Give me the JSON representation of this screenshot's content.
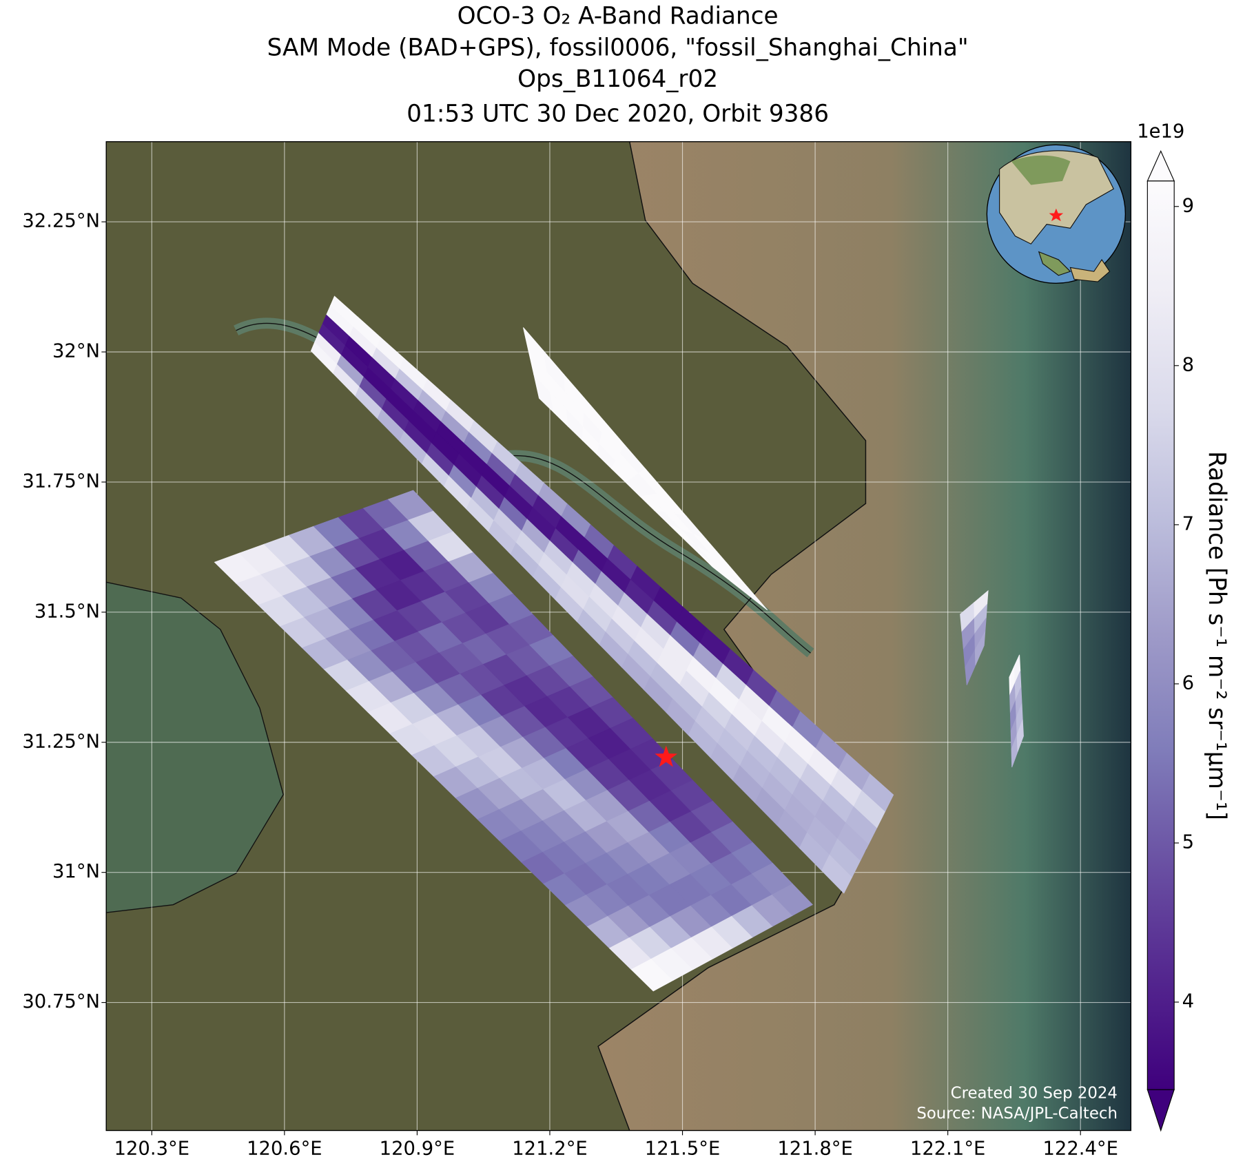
{
  "chart_data": {
    "type": "swath-map",
    "title": [
      "OCO-3 O₂ A-Band Radiance",
      "SAM Mode (BAD+GPS), fossil0006, \"fossil_Shanghai_China\"",
      "Ops_B11064_r02",
      "01:53 UTC 30 Dec 2020, Orbit 9386"
    ],
    "xlim": [
      120.197,
      122.514
    ],
    "ylim": [
      30.504,
      32.404
    ],
    "xticks": [
      {
        "value": 120.3,
        "label": "120.3°E"
      },
      {
        "value": 120.6,
        "label": "120.6°E"
      },
      {
        "value": 120.9,
        "label": "120.9°E"
      },
      {
        "value": 121.2,
        "label": "121.2°E"
      },
      {
        "value": 121.5,
        "label": "121.5°E"
      },
      {
        "value": 121.8,
        "label": "121.8°E"
      },
      {
        "value": 122.1,
        "label": "122.1°E"
      },
      {
        "value": 122.4,
        "label": "122.4°E"
      }
    ],
    "yticks": [
      {
        "value": 30.75,
        "label": "30.75°N"
      },
      {
        "value": 31,
        "label": "31°N"
      },
      {
        "value": 31.25,
        "label": "31.25°N"
      },
      {
        "value": 31.5,
        "label": "31.5°N"
      },
      {
        "value": 31.75,
        "label": "31.75°N"
      },
      {
        "value": 32,
        "label": "32°N"
      },
      {
        "value": 32.25,
        "label": "32.25°N"
      }
    ],
    "grid": true,
    "colorbar": {
      "label": "Radiance [Ph s⁻¹ m⁻² sr⁻¹μm⁻¹]",
      "offset_label": "1e19",
      "lim": [
        3.45,
        9.16
      ],
      "ticks": [
        4,
        5,
        6,
        7,
        8,
        9
      ],
      "colormap": [
        "#3f007d",
        "#54278f",
        "#6a51a3",
        "#807dba",
        "#9e9ac8",
        "#bcbddc",
        "#dadaeb",
        "#efedf5",
        "#fcfbfd"
      ]
    },
    "swaths": [
      {
        "corners": [
          [
            120.442,
            31.596
          ],
          [
            120.891,
            31.734
          ],
          [
            121.794,
            30.938
          ],
          [
            121.434,
            30.772
          ]
        ],
        "values": [
          [
            8.6,
            8.4,
            7.8,
            6.8,
            5.6,
            4.6,
            5.2,
            6.2
          ],
          [
            8.2,
            7.9,
            7.2,
            6.0,
            4.8,
            4.3,
            5.8,
            7.4
          ],
          [
            7.8,
            7.1,
            6.4,
            5.3,
            4.2,
            4.0,
            5.1,
            7.8
          ],
          [
            7.4,
            6.8,
            5.8,
            4.6,
            4.1,
            4.3,
            4.8,
            6.6
          ],
          [
            6.9,
            6.2,
            5.4,
            4.4,
            4.6,
            5.0,
            4.6,
            5.8
          ],
          [
            7.6,
            6.0,
            5.1,
            4.9,
            5.3,
            4.8,
            4.5,
            5.4
          ],
          [
            8.0,
            6.7,
            5.3,
            4.7,
            5.0,
            5.2,
            4.9,
            5.1
          ],
          [
            8.2,
            7.5,
            6.0,
            5.2,
            4.8,
            4.6,
            5.0,
            5.5
          ],
          [
            7.8,
            7.9,
            6.8,
            5.6,
            4.5,
            4.3,
            4.7,
            5.2
          ],
          [
            7.2,
            7.6,
            7.3,
            6.1,
            4.9,
            4.2,
            4.4,
            4.9
          ],
          [
            6.6,
            7.0,
            7.4,
            6.6,
            5.2,
            4.4,
            4.1,
            4.6
          ],
          [
            6.1,
            6.5,
            7.0,
            6.9,
            5.6,
            4.3,
            4.0,
            4.4
          ],
          [
            5.8,
            6.0,
            6.5,
            7.1,
            6.0,
            4.5,
            4.1,
            4.3
          ],
          [
            5.5,
            5.7,
            6.1,
            6.8,
            6.4,
            4.8,
            4.2,
            4.5
          ],
          [
            5.3,
            5.5,
            5.8,
            6.3,
            6.6,
            5.2,
            4.3,
            4.6
          ],
          [
            5.6,
            5.4,
            5.6,
            5.9,
            6.3,
            5.6,
            4.6,
            4.9
          ],
          [
            6.0,
            5.7,
            5.5,
            5.6,
            5.9,
            5.8,
            5.0,
            5.3
          ],
          [
            6.8,
            6.3,
            5.8,
            5.5,
            5.5,
            5.6,
            5.4,
            5.6
          ],
          [
            8.2,
            7.6,
            6.9,
            6.2,
            5.8,
            5.5,
            5.7,
            5.9
          ],
          [
            9.0,
            8.8,
            8.6,
            8.3,
            7.8,
            7.0,
            6.4,
            6.1
          ]
        ]
      },
      {
        "corners": [
          [
            120.66,
            32.002
          ],
          [
            120.713,
            32.107
          ],
          [
            121.977,
            31.149
          ],
          [
            121.865,
            30.96
          ]
        ],
        "values": [
          [
            8.8,
            8.5,
            4.0,
            3.8,
            8.9,
            9.0
          ],
          [
            8.2,
            6.5,
            3.7,
            3.6,
            8.6,
            9.0
          ],
          [
            7.4,
            4.8,
            3.6,
            3.7,
            7.9,
            8.9
          ],
          [
            6.8,
            4.2,
            3.6,
            3.8,
            7.2,
            8.8
          ],
          [
            7.0,
            4.0,
            3.6,
            3.7,
            6.8,
            8.6
          ],
          [
            7.5,
            4.4,
            3.6,
            3.6,
            6.4,
            8.2
          ],
          [
            7.8,
            5.8,
            3.7,
            3.6,
            5.8,
            7.8
          ],
          [
            7.6,
            7.0,
            4.2,
            3.6,
            5.0,
            7.4
          ],
          [
            7.2,
            7.4,
            5.3,
            3.7,
            4.4,
            7.0
          ],
          [
            7.0,
            7.6,
            6.6,
            3.8,
            3.9,
            6.5
          ],
          [
            7.1,
            7.8,
            7.4,
            4.3,
            3.7,
            6.0
          ],
          [
            7.3,
            7.9,
            7.8,
            5.2,
            3.7,
            5.2
          ],
          [
            7.0,
            7.6,
            8.0,
            6.4,
            3.8,
            4.4
          ],
          [
            6.8,
            7.3,
            8.2,
            7.2,
            4.1,
            3.9
          ],
          [
            6.7,
            7.1,
            8.3,
            7.9,
            4.6,
            3.7
          ],
          [
            6.6,
            7.0,
            8.4,
            8.4,
            5.4,
            3.7
          ],
          [
            6.7,
            7.0,
            8.0,
            8.7,
            6.4,
            3.8
          ],
          [
            6.9,
            7.2,
            7.6,
            8.8,
            7.6,
            4.1
          ],
          [
            6.8,
            7.1,
            7.3,
            8.6,
            8.4,
            4.6
          ],
          [
            6.6,
            6.9,
            7.1,
            8.2,
            8.8,
            5.2
          ],
          [
            6.5,
            6.8,
            7.0,
            7.8,
            8.7,
            5.8
          ],
          [
            6.6,
            6.7,
            6.8,
            7.4,
            8.5,
            6.2
          ],
          [
            6.9,
            6.8,
            6.7,
            7.1,
            8.0,
            6.6
          ],
          [
            7.2,
            7.0,
            6.8,
            6.9,
            7.6,
            6.9
          ]
        ]
      },
      {
        "corners": [
          [
            121.176,
            31.911
          ],
          [
            121.14,
            32.047
          ],
          [
            121.692,
            31.504
          ],
          [
            121.568,
            31.587
          ]
        ],
        "values": [
          [
            9.0,
            9.1,
            9.1
          ],
          [
            9.1,
            9.1,
            9.0
          ],
          [
            9.0,
            9.1,
            9.1
          ],
          [
            9.1,
            9.0,
            9.1
          ],
          [
            9.0,
            9.1,
            9.1
          ],
          [
            9.1,
            9.1,
            9.0
          ],
          [
            9.0,
            9.0,
            9.1
          ],
          [
            9.1,
            9.1,
            9.1
          ],
          [
            9.0,
            9.1,
            9.0
          ],
          [
            9.1,
            9.0,
            9.1
          ],
          [
            9.0,
            9.1,
            9.1
          ],
          [
            9.1,
            9.1,
            9.0
          ]
        ]
      },
      {
        "corners": [
          [
            122.128,
            31.496
          ],
          [
            122.191,
            31.541
          ],
          [
            122.182,
            31.436
          ],
          [
            122.143,
            31.36
          ]
        ],
        "values": [
          [
            7.8,
            8.4
          ],
          [
            6.2,
            7.0
          ],
          [
            5.8,
            6.4
          ],
          [
            6.0,
            6.6
          ]
        ]
      },
      {
        "corners": [
          [
            122.239,
            31.375
          ],
          [
            122.262,
            31.418
          ],
          [
            122.271,
            31.262
          ],
          [
            122.245,
            31.202
          ]
        ],
        "values": [
          [
            9.0,
            8.8
          ],
          [
            6.6,
            7.2
          ],
          [
            6.0,
            6.8
          ],
          [
            6.4,
            7.0
          ],
          [
            6.8,
            7.4
          ]
        ]
      }
    ],
    "target": {
      "lon": 121.463,
      "lat": 31.221,
      "color": "#ff1a1a"
    },
    "annotations": [
      "Created 30 Sep 2024",
      "Source: NASA/JPL-Caltech"
    ]
  }
}
